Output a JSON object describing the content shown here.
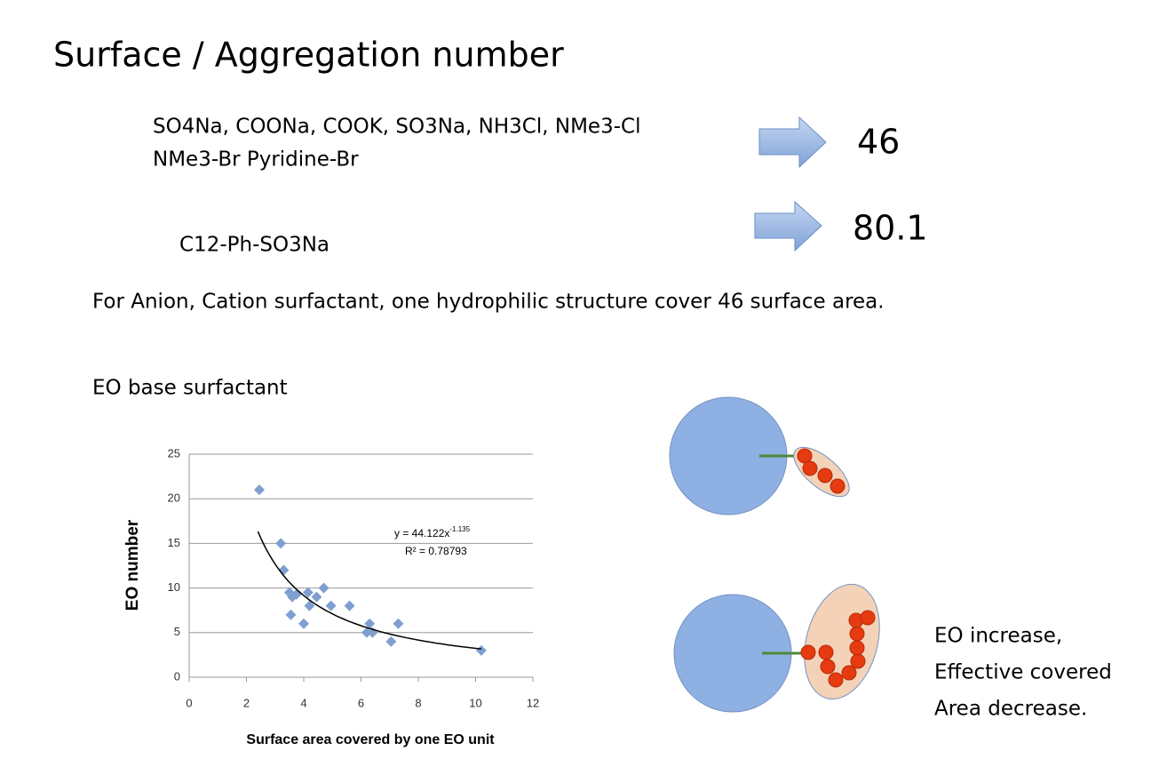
{
  "slide": {
    "title": "Surface / Aggregation number",
    "group_line_1": "SO4Na, COONa, COOK, SO3Na, NH3Cl, NMe3-Cl",
    "group_line_2": "NMe3-Br Pyridine-Br",
    "group_result": "46",
    "single_group": "C12-Ph-SO3Na",
    "single_result": "80.1",
    "statement": "For Anion, Cation surfactant, one hydrophilic structure cover 46 surface area.",
    "section_label": "EO base surfactant"
  },
  "chart_data": {
    "type": "scatter",
    "x_label": "Surface area covered by one EO unit",
    "y_label": "EO number",
    "xlim": [
      0,
      12
    ],
    "xticks": [
      0,
      2,
      4,
      6,
      8,
      10,
      12
    ],
    "ylim": [
      0,
      25
    ],
    "yticks": [
      0,
      5,
      10,
      15,
      20,
      25
    ],
    "grid": true,
    "color": "#7f9fd0",
    "x": [
      2.45,
      3.2,
      3.3,
      3.5,
      3.6,
      3.55,
      3.75,
      4.0,
      4.15,
      4.2,
      4.45,
      4.7,
      4.95,
      5.6,
      6.2,
      6.3,
      6.4,
      7.05,
      7.3,
      10.2
    ],
    "values": [
      21,
      15,
      12,
      9.5,
      9,
      7,
      9.3,
      6,
      9.5,
      8,
      9,
      10,
      8,
      8,
      5,
      6,
      5,
      4,
      6,
      3
    ],
    "trendline": {
      "coefficient": 44.122,
      "exponent": -1.135,
      "x_range": [
        2.4,
        10.2
      ]
    },
    "equation": "y = 44.122x",
    "equation_exponent": "-1.135",
    "r_squared": "R² = 0.78793"
  },
  "diagram": {
    "caption": [
      "EO increase,",
      "Effective covered",
      "Area decrease."
    ]
  }
}
